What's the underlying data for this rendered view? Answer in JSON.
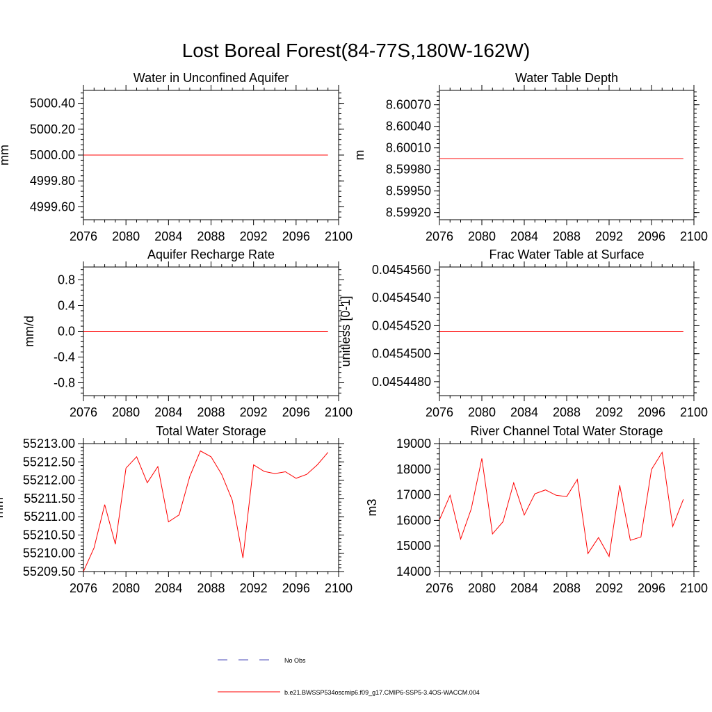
{
  "figure": {
    "title": "Lost Boreal Forest(84-77S,180W-162W)"
  },
  "legend": {
    "placement": "bottom-center",
    "entries": [
      {
        "label": "No Obs",
        "color": "#4a4ab8",
        "style": "dashed"
      },
      {
        "label": "b.e21.BWSSP534oscmip6.f09_g17.CMIP6-SSP5-3.4OS-WACCM.004",
        "color": "#ff0000",
        "style": "solid"
      }
    ]
  },
  "chart_data": [
    {
      "type": "line",
      "title": "Water in Unconfined Aquifer",
      "ylabel": "mm",
      "xlim": [
        2076,
        2100
      ],
      "ylim": [
        4999.5,
        5000.5
      ],
      "xticks": [
        "2076",
        "2080",
        "2084",
        "2088",
        "2092",
        "2096",
        "2100"
      ],
      "yticks": [
        "5000.40",
        "5000.20",
        "5000.00",
        "4999.80",
        "4999.60"
      ],
      "series": [
        {
          "color": "#ff0000",
          "x": [
            2076,
            2099
          ],
          "values": [
            5000.0,
            5000.0
          ]
        }
      ]
    },
    {
      "type": "line",
      "title": "Water Table Depth",
      "ylabel": "m",
      "xlim": [
        2076,
        2100
      ],
      "ylim": [
        8.5991,
        8.6009
      ],
      "xticks": [
        "2076",
        "2080",
        "2084",
        "2088",
        "2092",
        "2096",
        "2100"
      ],
      "yticks": [
        "8.60070",
        "8.60040",
        "8.60010",
        "8.59980",
        "8.59950",
        "8.59920"
      ],
      "series": [
        {
          "color": "#ff0000",
          "x": [
            2076,
            2099
          ],
          "values": [
            8.59995,
            8.59995
          ]
        }
      ]
    },
    {
      "type": "line",
      "title": "Aquifer Recharge Rate",
      "ylabel": "mm/d",
      "xlim": [
        2076,
        2100
      ],
      "ylim": [
        -1.0,
        1.0
      ],
      "xticks": [
        "2076",
        "2080",
        "2084",
        "2088",
        "2092",
        "2096",
        "2100"
      ],
      "yticks": [
        "0.8",
        "0.4",
        "0.0",
        "-0.4",
        "-0.8"
      ],
      "series": [
        {
          "color": "#ff0000",
          "x": [
            2076,
            2099
          ],
          "values": [
            0.0,
            0.0
          ]
        }
      ]
    },
    {
      "type": "line",
      "title": "Frac Water Table at Surface",
      "ylabel": "unitless [0-1]",
      "xlim": [
        2076,
        2100
      ],
      "ylim": [
        0.045447,
        0.0454562
      ],
      "xticks": [
        "2076",
        "2080",
        "2084",
        "2088",
        "2092",
        "2096",
        "2100"
      ],
      "yticks": [
        "0.0454560",
        "0.0454540",
        "0.0454520",
        "0.0454500",
        "0.0454480"
      ],
      "series": [
        {
          "color": "#ff0000",
          "x": [
            2076,
            2099
          ],
          "values": [
            0.0454516,
            0.0454516
          ]
        }
      ]
    },
    {
      "type": "line",
      "title": "Total Water Storage",
      "ylabel": "mm",
      "xlim": [
        2076,
        2100
      ],
      "ylim": [
        55209.5,
        55213.0
      ],
      "xticks": [
        "2076",
        "2080",
        "2084",
        "2088",
        "2092",
        "2096",
        "2100"
      ],
      "yticks": [
        "55213.00",
        "55212.50",
        "55212.00",
        "55211.50",
        "55211.00",
        "55210.50",
        "55210.00",
        "55209.50"
      ],
      "series": [
        {
          "color": "#ff0000",
          "x": [
            2076,
            2077,
            2078,
            2079,
            2080,
            2081,
            2082,
            2083,
            2084,
            2085,
            2086,
            2087,
            2088,
            2089,
            2090,
            2091,
            2092,
            2093,
            2094,
            2095,
            2096,
            2097,
            2098,
            2099
          ],
          "values": [
            55209.5,
            55210.15,
            55211.33,
            55210.25,
            55212.33,
            55212.64,
            55211.93,
            55212.37,
            55210.86,
            55211.05,
            55212.1,
            55212.8,
            55212.64,
            55212.16,
            55211.45,
            55209.87,
            55212.42,
            55212.24,
            55212.18,
            55212.23,
            55212.05,
            55212.16,
            55212.42,
            55212.76
          ]
        }
      ]
    },
    {
      "type": "line",
      "title": "River Channel Total Water Storage",
      "ylabel": "m3",
      "xlim": [
        2076,
        2100
      ],
      "ylim": [
        14000,
        19000
      ],
      "xticks": [
        "2076",
        "2080",
        "2084",
        "2088",
        "2092",
        "2096",
        "2100"
      ],
      "yticks": [
        "19000",
        "18000",
        "17000",
        "16000",
        "15000",
        "14000"
      ],
      "series": [
        {
          "color": "#ff0000",
          "x": [
            2076,
            2077,
            2078,
            2079,
            2080,
            2081,
            2082,
            2083,
            2084,
            2085,
            2086,
            2087,
            2088,
            2089,
            2090,
            2091,
            2092,
            2093,
            2094,
            2095,
            2096,
            2097,
            2098,
            2099
          ],
          "values": [
            16020,
            16980,
            15270,
            16450,
            18420,
            15470,
            15950,
            17470,
            16210,
            17040,
            17190,
            16980,
            16930,
            17600,
            14700,
            15330,
            14590,
            17370,
            15220,
            15350,
            17990,
            18660,
            15760,
            16820
          ]
        }
      ]
    }
  ]
}
